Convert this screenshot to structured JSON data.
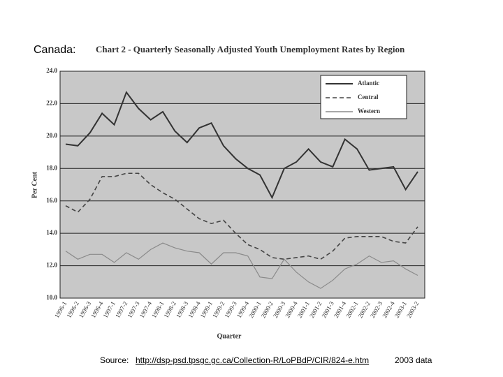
{
  "slide_label": "Canada:",
  "source": {
    "prefix": "Source:",
    "link": "http://dsp-psd.tpsgc.gc.ca/Collection-R/LoPBdP/CIR/824-e.htm",
    "suffix": "2003 data"
  },
  "chart_data": {
    "type": "line",
    "title": "Chart 2 - Quarterly Seasonally Adjusted Youth Unemployment Rates by Region",
    "x_label": "Quarter",
    "y_label": "Per Cent",
    "categories": [
      "1996-1",
      "1996-2",
      "1996-3",
      "1996-4",
      "1997-1",
      "1997-2",
      "1997-3",
      "1997-4",
      "1998-1",
      "1998-2",
      "1998-3",
      "1998-4",
      "1999-1",
      "1999-2",
      "1999-3",
      "1999-4",
      "2000-1",
      "2000-2",
      "2000-3",
      "2000-4",
      "2001-1",
      "2001-2",
      "2001-3",
      "2001-4",
      "2002-1",
      "2002-2",
      "2002-3",
      "2002-4",
      "2003-1",
      "2003-2"
    ],
    "series": [
      {
        "name": "Atlantic",
        "color": "#333333",
        "dash": "solid",
        "values": [
          19.5,
          19.4,
          20.2,
          21.4,
          20.7,
          22.7,
          21.7,
          21.0,
          21.5,
          20.3,
          19.6,
          20.5,
          20.8,
          19.4,
          18.6,
          18.0,
          17.6,
          16.2,
          18.0,
          18.4,
          19.2,
          18.4,
          18.1,
          19.8,
          19.2,
          17.9,
          18.0,
          18.1,
          16.7,
          17.8
        ]
      },
      {
        "name": "Central",
        "color": "#444444",
        "dash": "dashed",
        "values": [
          15.7,
          15.3,
          16.1,
          17.5,
          17.5,
          17.7,
          17.7,
          17.0,
          16.5,
          16.1,
          15.5,
          14.9,
          14.6,
          14.8,
          14.0,
          13.3,
          13.0,
          12.5,
          12.4,
          12.5,
          12.6,
          12.4,
          12.9,
          13.7,
          13.8,
          13.8,
          13.8,
          13.5,
          13.4,
          14.4
        ]
      },
      {
        "name": "Western",
        "color": "#8a8a8a",
        "dash": "solid",
        "values": [
          12.9,
          12.4,
          12.7,
          12.7,
          12.2,
          12.8,
          12.4,
          13.0,
          13.4,
          13.1,
          12.9,
          12.8,
          12.1,
          12.8,
          12.8,
          12.6,
          11.3,
          11.2,
          12.4,
          11.6,
          11.0,
          10.6,
          11.1,
          11.8,
          12.1,
          12.6,
          12.2,
          12.3,
          11.8,
          11.4
        ]
      }
    ],
    "ylim": [
      10,
      24
    ],
    "yticks": [
      {
        "value": 10,
        "label": "10.0"
      },
      {
        "value": 12,
        "label": "12.0"
      },
      {
        "value": 14,
        "label": "14.0"
      },
      {
        "value": 16,
        "label": "16.0"
      },
      {
        "value": 18,
        "label": "18.0"
      },
      {
        "value": 20,
        "label": "20.0"
      },
      {
        "value": 22,
        "label": "22.0"
      },
      {
        "value": 24,
        "label": "24.0"
      }
    ],
    "grid": true,
    "legend": "upper-right",
    "background": "#c8c8c8"
  }
}
